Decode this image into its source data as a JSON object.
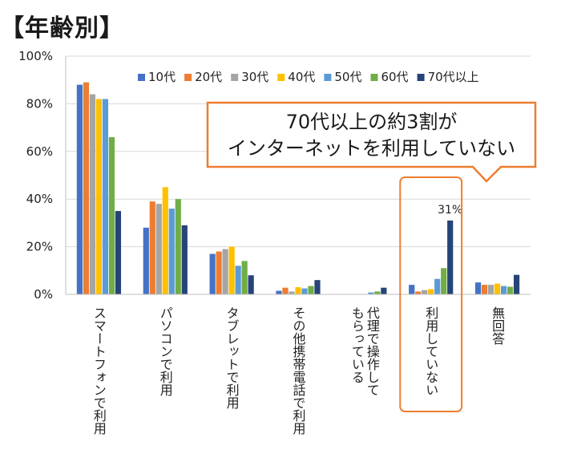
{
  "page": {
    "title": "【年齢別】"
  },
  "callout": {
    "lines": [
      "70代以上の約3割が",
      "インターネットを利用していない"
    ]
  },
  "chart_data": {
    "type": "bar",
    "title": "",
    "xlabel": "",
    "ylabel": "",
    "ylim": [
      0,
      100
    ],
    "y_ticks": [
      "0%",
      "20%",
      "40%",
      "60%",
      "80%",
      "100%"
    ],
    "grid": true,
    "legend_position": "top-right",
    "categories": [
      "スマートフォンで利用",
      "パソコンで利用",
      "タブレットで利用",
      "その他携帯電話で利用",
      "代理で操作してもらっている",
      "利用していない",
      "無回答"
    ],
    "category_lines": [
      [
        "スマートフォンで利用"
      ],
      [
        "パソコンで利用"
      ],
      [
        "タブレットで利用"
      ],
      [
        "その他携帯電話で利用"
      ],
      [
        "代理で操作して",
        "もらっている"
      ],
      [
        "利用していない"
      ],
      [
        "無回答"
      ]
    ],
    "highlight_category": "利用していない",
    "data_labels": [
      {
        "category_index": 5,
        "series_index": 6,
        "text": "31%"
      }
    ],
    "series": [
      {
        "name": "10代",
        "color": "#4472c4",
        "values": [
          88,
          28,
          17,
          1.5,
          0,
          4,
          5
        ]
      },
      {
        "name": "20代",
        "color": "#ed7d31",
        "values": [
          89,
          39,
          18,
          2.8,
          0,
          1.2,
          4
        ]
      },
      {
        "name": "30代",
        "color": "#a5a5a5",
        "values": [
          84,
          38,
          19,
          1.2,
          0,
          1.8,
          4
        ]
      },
      {
        "name": "40代",
        "color": "#ffc000",
        "values": [
          82,
          45,
          20,
          3,
          0,
          2.2,
          4.5
        ]
      },
      {
        "name": "50代",
        "color": "#5b9bd5",
        "values": [
          82,
          36,
          12,
          2.5,
          0.8,
          6.5,
          3.5
        ]
      },
      {
        "name": "60代",
        "color": "#70ad47",
        "values": [
          66,
          40,
          14,
          3.5,
          1.2,
          11,
          3.2
        ]
      },
      {
        "name": "70代以上",
        "color": "#264478",
        "values": [
          35,
          29,
          8,
          6,
          2.8,
          31,
          8.2
        ]
      }
    ]
  },
  "colors": {
    "accent_outline": "#ed7d31",
    "callout_border": "#ed7d31",
    "gridline": "#d9d9d9"
  }
}
